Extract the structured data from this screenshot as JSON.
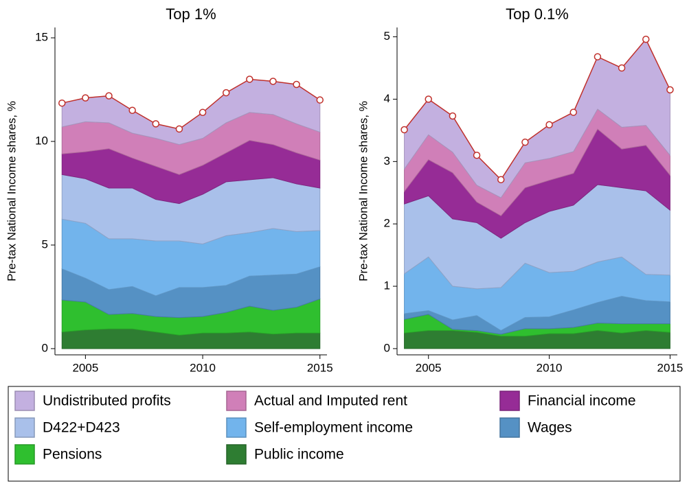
{
  "chart_data": [
    {
      "type": "stacked-area",
      "title": "Top 1%",
      "ylabel": "Pre-tax National Income shares, %",
      "x": [
        2004,
        2005,
        2006,
        2007,
        2008,
        2009,
        2010,
        2011,
        2012,
        2013,
        2014,
        2015
      ],
      "xlim": [
        2003.7,
        2015.3
      ],
      "xticks": [
        2005,
        2010,
        2015
      ],
      "ylim": [
        -0.3,
        15.5
      ],
      "yticks": [
        0,
        5,
        10,
        15
      ],
      "total_line_color": "#c0302b",
      "series": [
        {
          "name": "Public income",
          "color": "#2e7d32",
          "values": [
            0.8,
            0.9,
            0.95,
            0.95,
            0.8,
            0.65,
            0.75,
            0.75,
            0.8,
            0.7,
            0.75,
            0.75
          ]
        },
        {
          "name": "Pensions",
          "color": "#2fbf2f",
          "values": [
            1.55,
            1.35,
            0.7,
            0.75,
            0.75,
            0.85,
            0.8,
            1.0,
            1.25,
            1.15,
            1.25,
            1.65
          ]
        },
        {
          "name": "Wages",
          "color": "#5591c4",
          "values": [
            1.5,
            1.15,
            1.2,
            1.3,
            1.0,
            1.45,
            1.4,
            1.3,
            1.45,
            1.7,
            1.6,
            1.55
          ]
        },
        {
          "name": "Self-employment income",
          "color": "#72b4ec",
          "values": [
            2.4,
            2.65,
            2.45,
            2.3,
            2.65,
            2.25,
            2.1,
            2.4,
            2.1,
            2.25,
            2.05,
            1.75
          ]
        },
        {
          "name": "D422+D423",
          "color": "#a9c0ea",
          "values": [
            2.15,
            2.15,
            2.45,
            2.45,
            2.0,
            1.8,
            2.4,
            2.6,
            2.55,
            2.45,
            2.3,
            2.05
          ]
        },
        {
          "name": "Financial income",
          "color": "#962c96",
          "values": [
            1.0,
            1.3,
            1.9,
            1.45,
            1.6,
            1.4,
            1.4,
            1.4,
            1.9,
            1.6,
            1.5,
            1.35
          ]
        },
        {
          "name": "Actual and Imputed rent",
          "color": "#d07fb8",
          "values": [
            1.3,
            1.45,
            1.25,
            1.2,
            1.35,
            1.45,
            1.3,
            1.45,
            1.35,
            1.45,
            1.4,
            1.35
          ]
        },
        {
          "name": "Undistributed profits",
          "color": "#c3b0e0",
          "values": [
            1.15,
            1.15,
            1.3,
            1.1,
            0.7,
            0.75,
            1.25,
            1.45,
            1.6,
            1.6,
            1.9,
            1.55
          ]
        }
      ]
    },
    {
      "type": "stacked-area",
      "title": "Top 0.1%",
      "ylabel": "Pre-tax National Income shares, %",
      "x": [
        2004,
        2005,
        2006,
        2007,
        2008,
        2009,
        2010,
        2011,
        2012,
        2013,
        2014,
        2015
      ],
      "xlim": [
        2003.7,
        2015.3
      ],
      "xticks": [
        2005,
        2010,
        2015
      ],
      "ylim": [
        -0.1,
        5.15
      ],
      "yticks": [
        0,
        1,
        2,
        3,
        4,
        5
      ],
      "total_line_color": "#c0302b",
      "series": [
        {
          "name": "Public income",
          "color": "#2e7d32",
          "values": [
            0.25,
            0.29,
            0.29,
            0.26,
            0.2,
            0.2,
            0.24,
            0.24,
            0.29,
            0.25,
            0.29,
            0.26
          ]
        },
        {
          "name": "Pensions",
          "color": "#2fbf2f",
          "values": [
            0.22,
            0.26,
            0.02,
            0.03,
            0.03,
            0.12,
            0.08,
            0.1,
            0.12,
            0.15,
            0.11,
            0.14
          ]
        },
        {
          "name": "Wages",
          "color": "#5591c4",
          "values": [
            0.09,
            0.06,
            0.15,
            0.24,
            0.06,
            0.18,
            0.19,
            0.28,
            0.33,
            0.44,
            0.37,
            0.35
          ]
        },
        {
          "name": "Self-employment income",
          "color": "#72b4ec",
          "values": [
            0.64,
            0.86,
            0.54,
            0.43,
            0.69,
            0.87,
            0.71,
            0.62,
            0.65,
            0.63,
            0.42,
            0.43
          ]
        },
        {
          "name": "D422+D423",
          "color": "#a9c0ea",
          "values": [
            1.12,
            0.98,
            1.08,
            1.06,
            0.79,
            0.65,
            0.98,
            1.06,
            1.24,
            1.11,
            1.34,
            1.04
          ]
        },
        {
          "name": "Financial income",
          "color": "#962c96",
          "values": [
            0.2,
            0.58,
            0.74,
            0.33,
            0.36,
            0.56,
            0.5,
            0.51,
            0.89,
            0.62,
            0.73,
            0.56
          ]
        },
        {
          "name": "Actual and Imputed rent",
          "color": "#d07fb8",
          "values": [
            0.36,
            0.4,
            0.33,
            0.27,
            0.29,
            0.4,
            0.35,
            0.35,
            0.32,
            0.35,
            0.32,
            0.32
          ]
        },
        {
          "name": "Undistributed profits",
          "color": "#c3b0e0",
          "values": [
            0.63,
            0.57,
            0.58,
            0.48,
            0.29,
            0.33,
            0.54,
            0.63,
            0.84,
            0.95,
            1.38,
            1.05
          ]
        }
      ]
    }
  ]
}
